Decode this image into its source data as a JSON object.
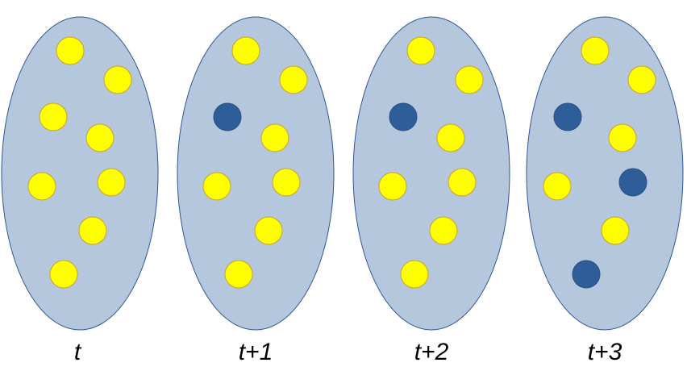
{
  "colors": {
    "container_fill": "#b4c7dc",
    "container_stroke": "#2f5597",
    "unchanged_ball": "#ffff00",
    "unchanged_ball_stroke": "#c9a227",
    "changed_ball": "#2e5e99",
    "changed_ball_stroke": "#2a4f7f"
  },
  "steps": [
    {
      "label": "t",
      "balls": [
        "yellow",
        "yellow",
        "yellow",
        "yellow",
        "yellow",
        "yellow",
        "yellow",
        "yellow"
      ]
    },
    {
      "label": "t+1",
      "balls": [
        "yellow",
        "yellow",
        "blue",
        "yellow",
        "yellow",
        "yellow",
        "yellow",
        "yellow"
      ]
    },
    {
      "label": "t+2",
      "balls": [
        "yellow",
        "yellow",
        "blue",
        "yellow",
        "yellow",
        "yellow",
        "yellow",
        "yellow"
      ]
    },
    {
      "label": "t+3",
      "balls": [
        "yellow",
        "yellow",
        "blue",
        "yellow",
        "yellow",
        "blue",
        "yellow",
        "blue"
      ]
    }
  ]
}
